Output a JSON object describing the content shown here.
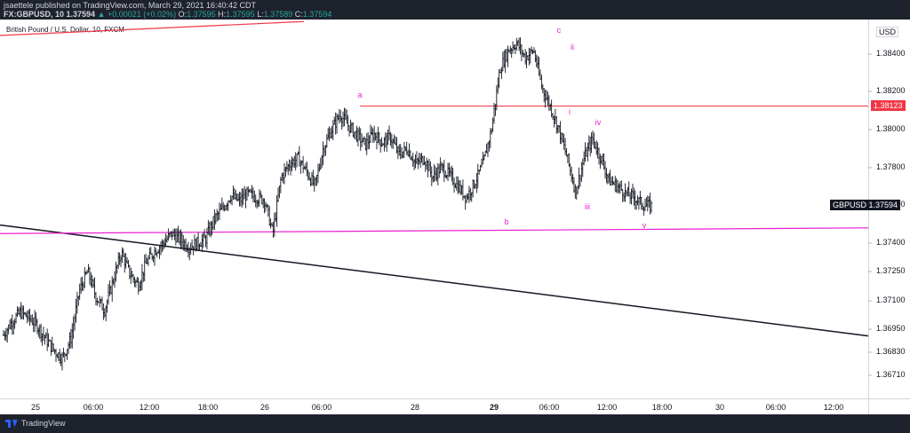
{
  "header": {
    "publisher": "jsaettele published on TradingView.com, March 29, 2021 16:40:42 CDT",
    "symbol_line": "FX:GBPUSD, 10",
    "price": "1.37594",
    "change": "▲ +0.00021 (+0.02%)",
    "o_label": "O:",
    "o_value": "1.37595",
    "h_label": "H:",
    "h_value": "1.37595",
    "l_label": "L:",
    "l_value": "1.37589",
    "c_label": "C:",
    "c_value": "1.37594"
  },
  "footer": {
    "brand": "TradingView"
  },
  "colors": {
    "candle": "#131722",
    "magenta": "#e91ed0",
    "red_line": "#f23645",
    "tag_red": "#f23645",
    "tag_dark": "#131722"
  },
  "chart_data": {
    "type": "line",
    "title": "British Pound / U.S. Dollar, 10, FXCM",
    "y_axis_label": "USD",
    "y_ticks": [
      "1.38400",
      "1.38200",
      "1.38000",
      "1.37800",
      "1.37600",
      "1.37400",
      "1.37250",
      "1.37100",
      "1.36950",
      "1.36830",
      "1.36710"
    ],
    "x_ticks": [
      {
        "label": "25",
        "bold": false
      },
      {
        "label": "06:00",
        "bold": false
      },
      {
        "label": "12:00",
        "bold": false
      },
      {
        "label": "18:00",
        "bold": false
      },
      {
        "label": "26",
        "bold": false
      },
      {
        "label": "06:00",
        "bold": false
      },
      {
        "label": "28",
        "bold": false
      },
      {
        "label": "29",
        "bold": true
      },
      {
        "label": "06:00",
        "bold": false
      },
      {
        "label": "12:00",
        "bold": false
      },
      {
        "label": "18:00",
        "bold": false
      },
      {
        "label": "30",
        "bold": false
      },
      {
        "label": "06:00",
        "bold": false
      },
      {
        "label": "12:00",
        "bold": false
      }
    ],
    "price_tags": [
      {
        "label": "1.38123",
        "color": "#f23645"
      },
      {
        "symbol": "GBPUSD",
        "label": "1.37594",
        "color": "#131722"
      }
    ],
    "price_path": [
      1.3692,
      1.3699,
      1.3704,
      1.3701,
      1.3697,
      1.369,
      1.3684,
      1.368,
      1.369,
      1.3715,
      1.3725,
      1.3712,
      1.3705,
      1.372,
      1.3735,
      1.3724,
      1.3718,
      1.373,
      1.3736,
      1.374,
      1.3745,
      1.3742,
      1.3738,
      1.374,
      1.3742,
      1.3752,
      1.3758,
      1.3765,
      1.3762,
      1.3766,
      1.3764,
      1.3763,
      1.3745,
      1.3775,
      1.3782,
      1.3785,
      1.3778,
      1.377,
      1.379,
      1.38,
      1.3808,
      1.3802,
      1.3797,
      1.3792,
      1.3798,
      1.3793,
      1.3796,
      1.3787,
      1.379,
      1.3782,
      1.3785,
      1.3775,
      1.378,
      1.3776,
      1.377,
      1.3764,
      1.3772,
      1.3782,
      1.38,
      1.3832,
      1.3842,
      1.3846,
      1.3838,
      1.3842,
      1.3822,
      1.3812,
      1.38,
      1.3785,
      1.3767,
      1.3785,
      1.3795,
      1.3785,
      1.3773,
      1.377,
      1.3766,
      1.3764,
      1.376,
      1.37594
    ],
    "wave_labels": [
      "a",
      "b",
      "c",
      "i",
      "ii",
      "iii",
      "iv",
      "v"
    ],
    "trendlines": [
      {
        "color": "#131722",
        "from": [
          0,
          1.37495
        ],
        "to": [
          1,
          1.36915
        ]
      },
      {
        "color": "#e91ed0",
        "from": [
          0,
          1.3745
        ],
        "to": [
          1,
          1.3748
        ]
      },
      {
        "color": "#f23645",
        "from": [
          0,
          1.385
        ],
        "to": [
          0.35,
          1.38575
        ]
      }
    ]
  }
}
